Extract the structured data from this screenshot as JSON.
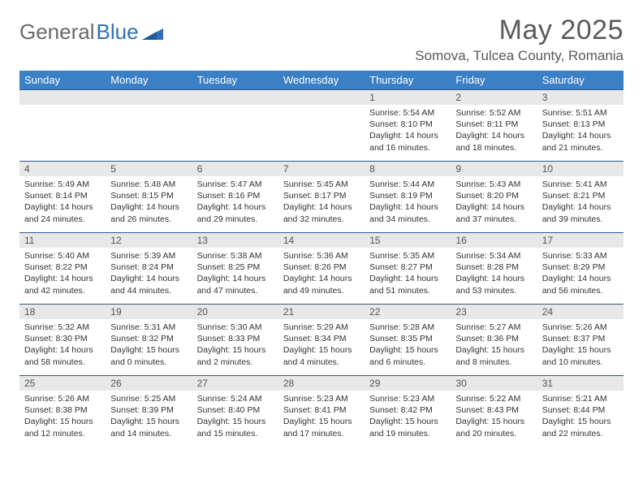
{
  "logo": {
    "text_gray": "General",
    "text_blue": "Blue"
  },
  "title": {
    "month": "May 2025",
    "location": "Somova, Tulcea County, Romania"
  },
  "colors": {
    "header_bg": "#3b7fc4",
    "header_text": "#ffffff",
    "daynum_bg": "#e8e8e8",
    "border": "#2f5a8a",
    "logo_gray": "#6a6a6a",
    "logo_blue": "#2f71b8",
    "text": "#333333"
  },
  "day_headers": [
    "Sunday",
    "Monday",
    "Tuesday",
    "Wednesday",
    "Thursday",
    "Friday",
    "Saturday"
  ],
  "weeks": [
    [
      null,
      null,
      null,
      null,
      {
        "n": "1",
        "sr": "5:54 AM",
        "ss": "8:10 PM",
        "dl": "14 hours and 16 minutes."
      },
      {
        "n": "2",
        "sr": "5:52 AM",
        "ss": "8:11 PM",
        "dl": "14 hours and 18 minutes."
      },
      {
        "n": "3",
        "sr": "5:51 AM",
        "ss": "8:13 PM",
        "dl": "14 hours and 21 minutes."
      }
    ],
    [
      {
        "n": "4",
        "sr": "5:49 AM",
        "ss": "8:14 PM",
        "dl": "14 hours and 24 minutes."
      },
      {
        "n": "5",
        "sr": "5:48 AM",
        "ss": "8:15 PM",
        "dl": "14 hours and 26 minutes."
      },
      {
        "n": "6",
        "sr": "5:47 AM",
        "ss": "8:16 PM",
        "dl": "14 hours and 29 minutes."
      },
      {
        "n": "7",
        "sr": "5:45 AM",
        "ss": "8:17 PM",
        "dl": "14 hours and 32 minutes."
      },
      {
        "n": "8",
        "sr": "5:44 AM",
        "ss": "8:19 PM",
        "dl": "14 hours and 34 minutes."
      },
      {
        "n": "9",
        "sr": "5:43 AM",
        "ss": "8:20 PM",
        "dl": "14 hours and 37 minutes."
      },
      {
        "n": "10",
        "sr": "5:41 AM",
        "ss": "8:21 PM",
        "dl": "14 hours and 39 minutes."
      }
    ],
    [
      {
        "n": "11",
        "sr": "5:40 AM",
        "ss": "8:22 PM",
        "dl": "14 hours and 42 minutes."
      },
      {
        "n": "12",
        "sr": "5:39 AM",
        "ss": "8:24 PM",
        "dl": "14 hours and 44 minutes."
      },
      {
        "n": "13",
        "sr": "5:38 AM",
        "ss": "8:25 PM",
        "dl": "14 hours and 47 minutes."
      },
      {
        "n": "14",
        "sr": "5:36 AM",
        "ss": "8:26 PM",
        "dl": "14 hours and 49 minutes."
      },
      {
        "n": "15",
        "sr": "5:35 AM",
        "ss": "8:27 PM",
        "dl": "14 hours and 51 minutes."
      },
      {
        "n": "16",
        "sr": "5:34 AM",
        "ss": "8:28 PM",
        "dl": "14 hours and 53 minutes."
      },
      {
        "n": "17",
        "sr": "5:33 AM",
        "ss": "8:29 PM",
        "dl": "14 hours and 56 minutes."
      }
    ],
    [
      {
        "n": "18",
        "sr": "5:32 AM",
        "ss": "8:30 PM",
        "dl": "14 hours and 58 minutes."
      },
      {
        "n": "19",
        "sr": "5:31 AM",
        "ss": "8:32 PM",
        "dl": "15 hours and 0 minutes."
      },
      {
        "n": "20",
        "sr": "5:30 AM",
        "ss": "8:33 PM",
        "dl": "15 hours and 2 minutes."
      },
      {
        "n": "21",
        "sr": "5:29 AM",
        "ss": "8:34 PM",
        "dl": "15 hours and 4 minutes."
      },
      {
        "n": "22",
        "sr": "5:28 AM",
        "ss": "8:35 PM",
        "dl": "15 hours and 6 minutes."
      },
      {
        "n": "23",
        "sr": "5:27 AM",
        "ss": "8:36 PM",
        "dl": "15 hours and 8 minutes."
      },
      {
        "n": "24",
        "sr": "5:26 AM",
        "ss": "8:37 PM",
        "dl": "15 hours and 10 minutes."
      }
    ],
    [
      {
        "n": "25",
        "sr": "5:26 AM",
        "ss": "8:38 PM",
        "dl": "15 hours and 12 minutes."
      },
      {
        "n": "26",
        "sr": "5:25 AM",
        "ss": "8:39 PM",
        "dl": "15 hours and 14 minutes."
      },
      {
        "n": "27",
        "sr": "5:24 AM",
        "ss": "8:40 PM",
        "dl": "15 hours and 15 minutes."
      },
      {
        "n": "28",
        "sr": "5:23 AM",
        "ss": "8:41 PM",
        "dl": "15 hours and 17 minutes."
      },
      {
        "n": "29",
        "sr": "5:23 AM",
        "ss": "8:42 PM",
        "dl": "15 hours and 19 minutes."
      },
      {
        "n": "30",
        "sr": "5:22 AM",
        "ss": "8:43 PM",
        "dl": "15 hours and 20 minutes."
      },
      {
        "n": "31",
        "sr": "5:21 AM",
        "ss": "8:44 PM",
        "dl": "15 hours and 22 minutes."
      }
    ]
  ],
  "labels": {
    "sunrise": "Sunrise:",
    "sunset": "Sunset:",
    "daylight": "Daylight:"
  }
}
